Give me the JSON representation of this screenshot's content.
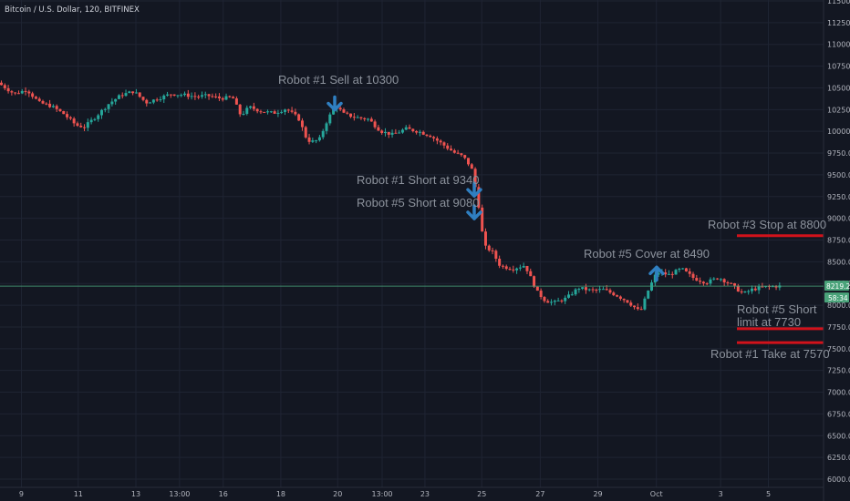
{
  "header": {
    "title": "Bitcoin / U.S. Dollar, 120, BITFINEX"
  },
  "colors": {
    "background": "#131722",
    "up": "#26a69a",
    "down": "#ef5350",
    "arrow": "#2f7fc1",
    "level_line": "#d1121b",
    "last_price_line": "#4aa37a",
    "annotation_text": "#8c929c"
  },
  "chart_data": {
    "type": "candlestick",
    "title": "Bitcoin / U.S. Dollar, 120, BITFINEX",
    "ylim": [
      6000,
      11500
    ],
    "y_ticks": [
      11500,
      11250,
      11000,
      10750,
      10500,
      10250,
      10000,
      9750,
      9500,
      9250,
      9000,
      8750,
      8500,
      8250,
      8000,
      7750,
      7500,
      7250,
      7000,
      6750,
      6500,
      6250,
      6000
    ],
    "y_tick_labels": [
      "11500.0",
      "11250.0",
      "11000.0",
      "10750.0",
      "10500.0",
      "10250.0",
      "10000.0",
      "9750.0",
      "9500.0",
      "9250.0",
      "9000.0",
      "8750.0",
      "8500.0",
      "8250.0",
      "8000.0",
      "7750.0",
      "7500.0",
      "7250.0",
      "7000.0",
      "6750.0",
      "6500.0",
      "6250.0",
      "6000.0"
    ],
    "x_tick_labels": [
      "9",
      "11",
      "13",
      "13:00",
      "16",
      "18",
      "20",
      "13:00",
      "23",
      "25",
      "27",
      "29",
      "Oct",
      "3",
      "5"
    ],
    "x_tick_fracs": [
      0.026,
      0.095,
      0.165,
      0.218,
      0.271,
      0.341,
      0.41,
      0.464,
      0.516,
      0.585,
      0.656,
      0.726,
      0.797,
      0.875,
      0.933
    ],
    "close_path": [
      [
        0.0,
        10560
      ],
      [
        0.02,
        10430
      ],
      [
        0.035,
        10480
      ],
      [
        0.05,
        10330
      ],
      [
        0.065,
        10290
      ],
      [
        0.08,
        10200
      ],
      [
        0.095,
        10070
      ],
      [
        0.105,
        10050
      ],
      [
        0.12,
        10180
      ],
      [
        0.135,
        10320
      ],
      [
        0.15,
        10420
      ],
      [
        0.165,
        10460
      ],
      [
        0.18,
        10330
      ],
      [
        0.195,
        10380
      ],
      [
        0.21,
        10430
      ],
      [
        0.225,
        10420
      ],
      [
        0.24,
        10400
      ],
      [
        0.255,
        10410
      ],
      [
        0.27,
        10380
      ],
      [
        0.285,
        10390
      ],
      [
        0.295,
        10180
      ],
      [
        0.305,
        10280
      ],
      [
        0.32,
        10230
      ],
      [
        0.335,
        10210
      ],
      [
        0.35,
        10260
      ],
      [
        0.365,
        10150
      ],
      [
        0.375,
        9910
      ],
      [
        0.38,
        9880
      ],
      [
        0.39,
        9900
      ],
      [
        0.4,
        10130
      ],
      [
        0.41,
        10300
      ],
      [
        0.42,
        10200
      ],
      [
        0.435,
        10160
      ],
      [
        0.45,
        10140
      ],
      [
        0.465,
        10000
      ],
      [
        0.48,
        9960
      ],
      [
        0.495,
        10030
      ],
      [
        0.51,
        10000
      ],
      [
        0.525,
        9950
      ],
      [
        0.54,
        9850
      ],
      [
        0.555,
        9750
      ],
      [
        0.565,
        9710
      ],
      [
        0.575,
        9580
      ],
      [
        0.58,
        9340
      ],
      [
        0.585,
        9080
      ],
      [
        0.59,
        8680
      ],
      [
        0.6,
        8620
      ],
      [
        0.61,
        8450
      ],
      [
        0.625,
        8420
      ],
      [
        0.64,
        8460
      ],
      [
        0.655,
        8150
      ],
      [
        0.665,
        8050
      ],
      [
        0.675,
        8030
      ],
      [
        0.69,
        8080
      ],
      [
        0.705,
        8200
      ],
      [
        0.72,
        8170
      ],
      [
        0.735,
        8180
      ],
      [
        0.75,
        8120
      ],
      [
        0.765,
        8040
      ],
      [
        0.78,
        7920
      ],
      [
        0.79,
        8180
      ],
      [
        0.8,
        8380
      ],
      [
        0.815,
        8350
      ],
      [
        0.83,
        8420
      ],
      [
        0.845,
        8310
      ],
      [
        0.86,
        8260
      ],
      [
        0.875,
        8320
      ],
      [
        0.89,
        8240
      ],
      [
        0.905,
        8130
      ],
      [
        0.915,
        8180
      ],
      [
        0.93,
        8210
      ],
      [
        0.945,
        8219
      ]
    ],
    "last_price": 8219.2,
    "last_price_label": "8219.2",
    "countdown_label": "58:34",
    "annotations": [
      {
        "text": "Robot #1 Sell at 10300"
      },
      {
        "text": "Robot #1 Short at 9340"
      },
      {
        "text": "Robot #5 Short at 9080"
      },
      {
        "text": "Robot #5 Cover at 8490"
      },
      {
        "text": "Robot #3 Stop at 8800"
      },
      {
        "text": "Robot #5 Short"
      },
      {
        "text": "limit at 7730"
      },
      {
        "text": "Robot #1 Take at 7570"
      }
    ],
    "level_lines": [
      8800,
      7730,
      7570
    ],
    "signals": [
      {
        "type": "sell",
        "price": 10300
      },
      {
        "type": "short",
        "price": 9340
      },
      {
        "type": "short",
        "price": 9080
      },
      {
        "type": "cover",
        "price": 8490
      }
    ]
  }
}
